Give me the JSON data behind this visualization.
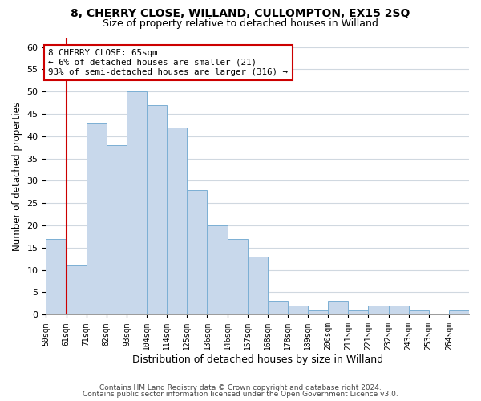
{
  "title1": "8, CHERRY CLOSE, WILLAND, CULLOMPTON, EX15 2SQ",
  "title2": "Size of property relative to detached houses in Willand",
  "xlabel": "Distribution of detached houses by size in Willand",
  "ylabel": "Number of detached properties",
  "bin_labels": [
    "50sqm",
    "61sqm",
    "71sqm",
    "82sqm",
    "93sqm",
    "104sqm",
    "114sqm",
    "125sqm",
    "136sqm",
    "146sqm",
    "157sqm",
    "168sqm",
    "178sqm",
    "189sqm",
    "200sqm",
    "211sqm",
    "221sqm",
    "232sqm",
    "243sqm",
    "253sqm",
    "264sqm"
  ],
  "bin_values": [
    17,
    11,
    43,
    38,
    50,
    47,
    42,
    28,
    20,
    17,
    13,
    3,
    2,
    1,
    3,
    1,
    2,
    2,
    1,
    0,
    1
  ],
  "bar_color": "#c8d8eb",
  "bar_edge_color": "#7bafd4",
  "grid_color": "#d0d8e0",
  "property_line_x": 1,
  "annotation_text": "8 CHERRY CLOSE: 65sqm\n← 6% of detached houses are smaller (21)\n93% of semi-detached houses are larger (316) →",
  "annotation_box_edge": "#cc0000",
  "property_line_color": "#cc0000",
  "ylim": [
    0,
    62
  ],
  "yticks": [
    0,
    5,
    10,
    15,
    20,
    25,
    30,
    35,
    40,
    45,
    50,
    55,
    60
  ],
  "footer1": "Contains HM Land Registry data © Crown copyright and database right 2024.",
  "footer2": "Contains public sector information licensed under the Open Government Licence v3.0."
}
